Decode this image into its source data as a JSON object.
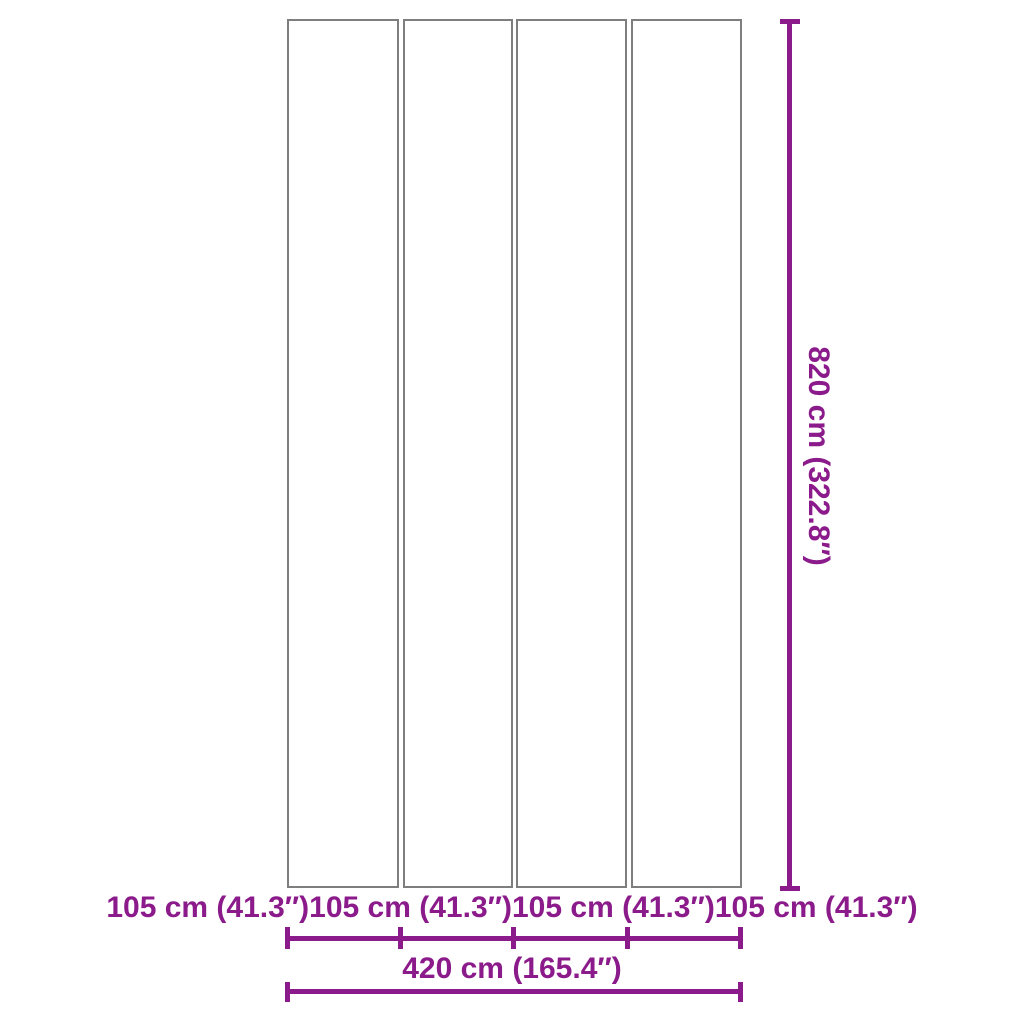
{
  "diagram": {
    "type": "product-dimension-diagram",
    "panel_count": 4,
    "height_dimension": {
      "label": "820 cm (322.8″)"
    },
    "panel_width_labels": [
      "105 cm (41.3″)",
      "105 cm (41.3″)",
      "105 cm (41.3″)",
      "105 cm (41.3″)"
    ],
    "total_width_dimension": {
      "label": "420 cm (165.4″)"
    },
    "colors": {
      "dimension_accent": "#8b1a8b",
      "panel_border": "#7e7e7e",
      "background": "#ffffff"
    }
  }
}
